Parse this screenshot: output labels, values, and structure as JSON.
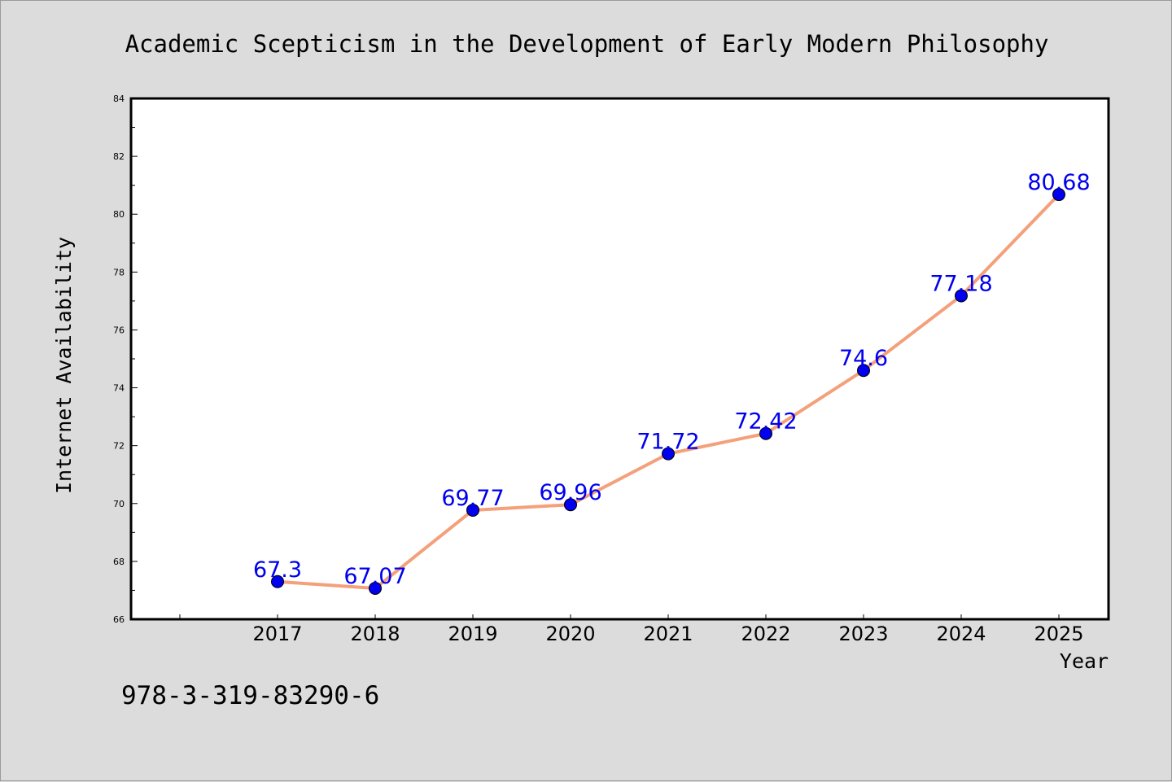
{
  "chart_data": {
    "type": "line",
    "title": "Academic Scepticism in the Development of Early Modern Philosophy",
    "xlabel": "Year",
    "ylabel": "Internet Availability",
    "categories": [
      "2017",
      "2018",
      "2019",
      "2020",
      "2021",
      "2022",
      "2023",
      "2024",
      "2025"
    ],
    "values": [
      67.3,
      67.07,
      69.77,
      69.96,
      71.72,
      72.42,
      74.6,
      77.18,
      80.68
    ],
    "data_labels": [
      "67.3",
      "67.07",
      "69.77",
      "69.96",
      "71.72",
      "72.42",
      "74.6",
      "77.18",
      "80.68"
    ],
    "ylim": [
      66,
      84
    ],
    "yticks": [
      "66",
      "68",
      "70",
      "72",
      "74",
      "76",
      "78",
      "80",
      "82",
      "84"
    ],
    "line_color": "#f4a07a",
    "marker_color": "#0000ee",
    "label_color": "#0000ee",
    "grid": false,
    "legend": "none"
  },
  "footer_text": "978-3-319-83290-6",
  "colors": {
    "background": "#dcdcdc",
    "plot_background": "#ffffff"
  }
}
